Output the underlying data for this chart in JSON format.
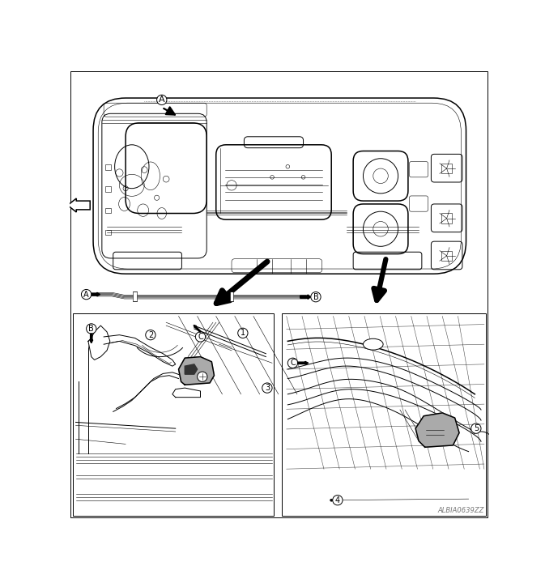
{
  "bg": "#ffffff",
  "lc": "#000000",
  "gray": "#888888",
  "lgray": "#aaaaaa",
  "dpi": 100,
  "fw": 6.73,
  "fh": 7.2,
  "watermark": "ALBIA0639ZZ",
  "lA": "A",
  "lB": "B",
  "lC": "C"
}
